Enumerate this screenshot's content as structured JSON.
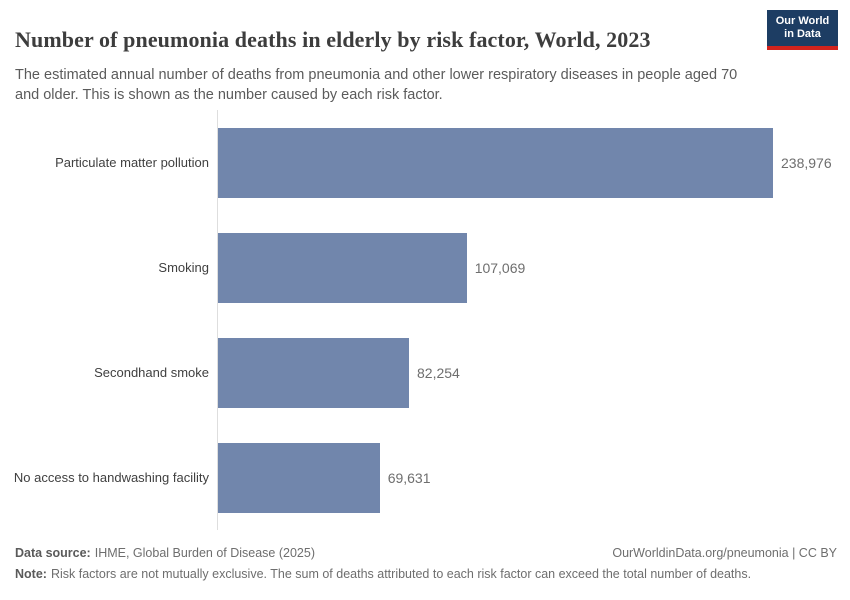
{
  "header": {
    "title": "Number of pneumonia deaths in elderly by risk factor, World, 2023",
    "subtitle": "The estimated annual number of deaths from pneumonia and other lower respiratory diseases in people aged 70 and older. This is shown as the number caused by each risk factor.",
    "logo": {
      "line1": "Our World",
      "line2": "in Data"
    }
  },
  "chart_data": {
    "type": "bar",
    "orientation": "horizontal",
    "title": "Number of pneumonia deaths in elderly by risk factor, World, 2023",
    "categories": [
      "Particulate matter pollution",
      "Smoking",
      "Secondhand smoke",
      "No access to handwashing facility"
    ],
    "values": [
      238976,
      107069,
      82254,
      69631
    ],
    "value_labels": [
      "238,976",
      "107,069",
      "82,254",
      "69,631"
    ],
    "xlim": [
      0,
      238976
    ],
    "grid": false,
    "legend": "none",
    "bar_color": "#7186ac"
  },
  "footer": {
    "data_source_label": "Data source:",
    "data_source": "IHME, Global Burden of Disease (2025)",
    "attribution": "OurWorldinData.org/pneumonia | CC BY",
    "note_label": "Note:",
    "note": "Risk factors are not mutually exclusive. The sum of deaths attributed to each risk factor can exceed the total number of deaths."
  },
  "colors": {
    "bar": "#7186ac",
    "axis_line": "#dedede",
    "title_text": "#3d3d3d",
    "subtitle_text": "#5b5b5b",
    "category_text": "#404040",
    "value_text": "#6e6e6e",
    "footer_text": "#6e6e6e",
    "logo_bg": "#1d3d63",
    "logo_accent": "#d2231c",
    "background": "#ffffff"
  }
}
